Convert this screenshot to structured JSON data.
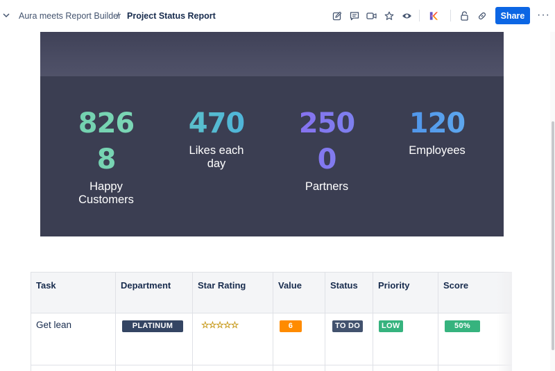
{
  "header": {
    "breadcrumb_parent": "Aura meets Report Builder",
    "breadcrumb_separator": "/",
    "page_title": "Project Status Report",
    "share_label": "Share",
    "more_label": "···",
    "icons": [
      "chevron-down-icon",
      "edit-icon",
      "comment-icon",
      "video-icon",
      "star-icon",
      "eye-icon",
      "app-logo-icon",
      "lock-icon",
      "link-icon"
    ]
  },
  "stats": [
    {
      "value": "8268",
      "label": "Happy Customers",
      "gradient": [
        "#6fcfad",
        "#7fd8b8"
      ]
    },
    {
      "value": "470",
      "label": "Likes each day",
      "gradient": [
        "#5fc4c4",
        "#4ab0e0"
      ]
    },
    {
      "value": "2500",
      "label": "Partners",
      "gradient": [
        "#8a6cf0",
        "#7a86ee"
      ]
    },
    {
      "value": "120",
      "label": "Employees",
      "gradient": [
        "#4a8ee8",
        "#63aef0"
      ]
    }
  ],
  "stats_display": {
    "s1_line1": "826",
    "s1_line2": "8",
    "s1_label1": "Happy",
    "s1_label2": "Customers",
    "s2_line1": "470",
    "s2_label1": "Likes each",
    "s2_label2": "day",
    "s3_line1": "250",
    "s3_line2": "0",
    "s3_label1": "Partners",
    "s4_line1": "120",
    "s4_label1": "Employees"
  },
  "table": {
    "columns": [
      "Task",
      "Department",
      "Star Rating",
      "Value",
      "Status",
      "Priority",
      "Score"
    ],
    "rows": [
      {
        "task": "Get lean",
        "department": "PLATINUM",
        "star_rating": "☆☆☆☆☆",
        "value": "6",
        "status": "TO DO",
        "priority": "LOW",
        "score": "50%"
      }
    ]
  },
  "colors": {
    "banner_bg": "#3b3e52",
    "share_bg": "#0c66e4",
    "lozenge_platinum": "#344563",
    "lozenge_value": "#ff8b00",
    "lozenge_todo": "#42526e",
    "lozenge_green": "#36b37e"
  }
}
